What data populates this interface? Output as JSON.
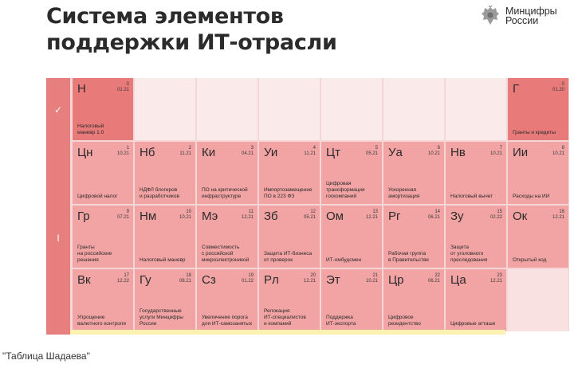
{
  "title": "Система элементов\nподдержки ИТ-отрасли",
  "logo": {
    "text": "Минцифры\nРоссии"
  },
  "rows": [
    {
      "marker": "✓"
    },
    {
      "marker": "I"
    }
  ],
  "elements": [
    {
      "symbol": "Н",
      "number": "0",
      "date": "01.21",
      "label": "Налоговый\nманевр 1.0"
    },
    {
      "symbol": "Г",
      "number": "0",
      "date": "01.20",
      "label": "Гранты и кредиты"
    },
    {
      "symbol": "Цн",
      "number": "1",
      "date": "10.21",
      "label": "Цифровой налог"
    },
    {
      "symbol": "Нб",
      "number": "2",
      "date": "11.21",
      "label": "НДФЛ блогеров\nи разработчиков"
    },
    {
      "symbol": "Ки",
      "number": "3",
      "date": "04.21",
      "label": "ПО на критической\nинфраструктуре"
    },
    {
      "symbol": "Уи",
      "number": "4",
      "date": "11.21",
      "label": "Импортозамещение\nПО в 223 ФЗ"
    },
    {
      "symbol": "Цт",
      "number": "5",
      "date": "05.21",
      "label": "Цифровая\nтрансформация\nгоскомпаний"
    },
    {
      "symbol": "Уа",
      "number": "6",
      "date": "10.21",
      "label": "Ускоренная\nамортизация"
    },
    {
      "symbol": "Нв",
      "number": "7",
      "date": "10.21",
      "label": "Налоговый вычет"
    },
    {
      "symbol": "Ии",
      "number": "8",
      "date": "10.21",
      "label": "Расходы на ИИ"
    },
    {
      "symbol": "Гр",
      "number": "9",
      "date": "07.21",
      "label": "Гранты\nна российские\nрешения"
    },
    {
      "symbol": "Нм",
      "number": "10",
      "date": "10.21",
      "label": "Налоговый маневр"
    },
    {
      "symbol": "Мэ",
      "number": "11",
      "date": "12.21",
      "label": "Совместимость\nс российской\nмикроэлектроникой"
    },
    {
      "symbol": "Зб",
      "number": "12",
      "date": "05.21",
      "label": "Защита ИТ-бизнеса\nот проверок"
    },
    {
      "symbol": "Ом",
      "number": "13",
      "date": "12.21",
      "label": "ИТ-омбудсмен"
    },
    {
      "symbol": "Рг",
      "number": "14",
      "date": "06.21",
      "label": "Рабочая группа\nв Правительстве"
    },
    {
      "symbol": "Зу",
      "number": "15",
      "date": "02.22",
      "label": "Защита\nот уголовного\nпреследования"
    },
    {
      "symbol": "Ок",
      "number": "16",
      "date": "12.21",
      "label": "Открытый код"
    },
    {
      "symbol": "Вк",
      "number": "17",
      "date": "12.22",
      "label": "Упрощение\nвалютного контроля"
    },
    {
      "symbol": "Гу",
      "number": "18",
      "date": "08.21",
      "label": "Государственные\nуслуги Минцифры\nРоссии"
    },
    {
      "symbol": "Сз",
      "number": "19",
      "date": "01.22",
      "label": "Увеличение порога\nдля ИТ-самозанятых"
    },
    {
      "symbol": "Рл",
      "number": "20",
      "date": "12.21",
      "label": "Релокация\nИТ-специалистов\nи компаний"
    },
    {
      "symbol": "Эт",
      "number": "21",
      "date": "10.21",
      "label": "Поддержка\nИТ-экспорта"
    },
    {
      "symbol": "Цр",
      "number": "22",
      "date": "06.21",
      "label": "Цифровое\nрезидентство"
    },
    {
      "symbol": "Ца",
      "number": "23",
      "date": "12.21",
      "label": "Цифровые атташе"
    }
  ],
  "caption": "\"Таблица Шадаева\""
}
